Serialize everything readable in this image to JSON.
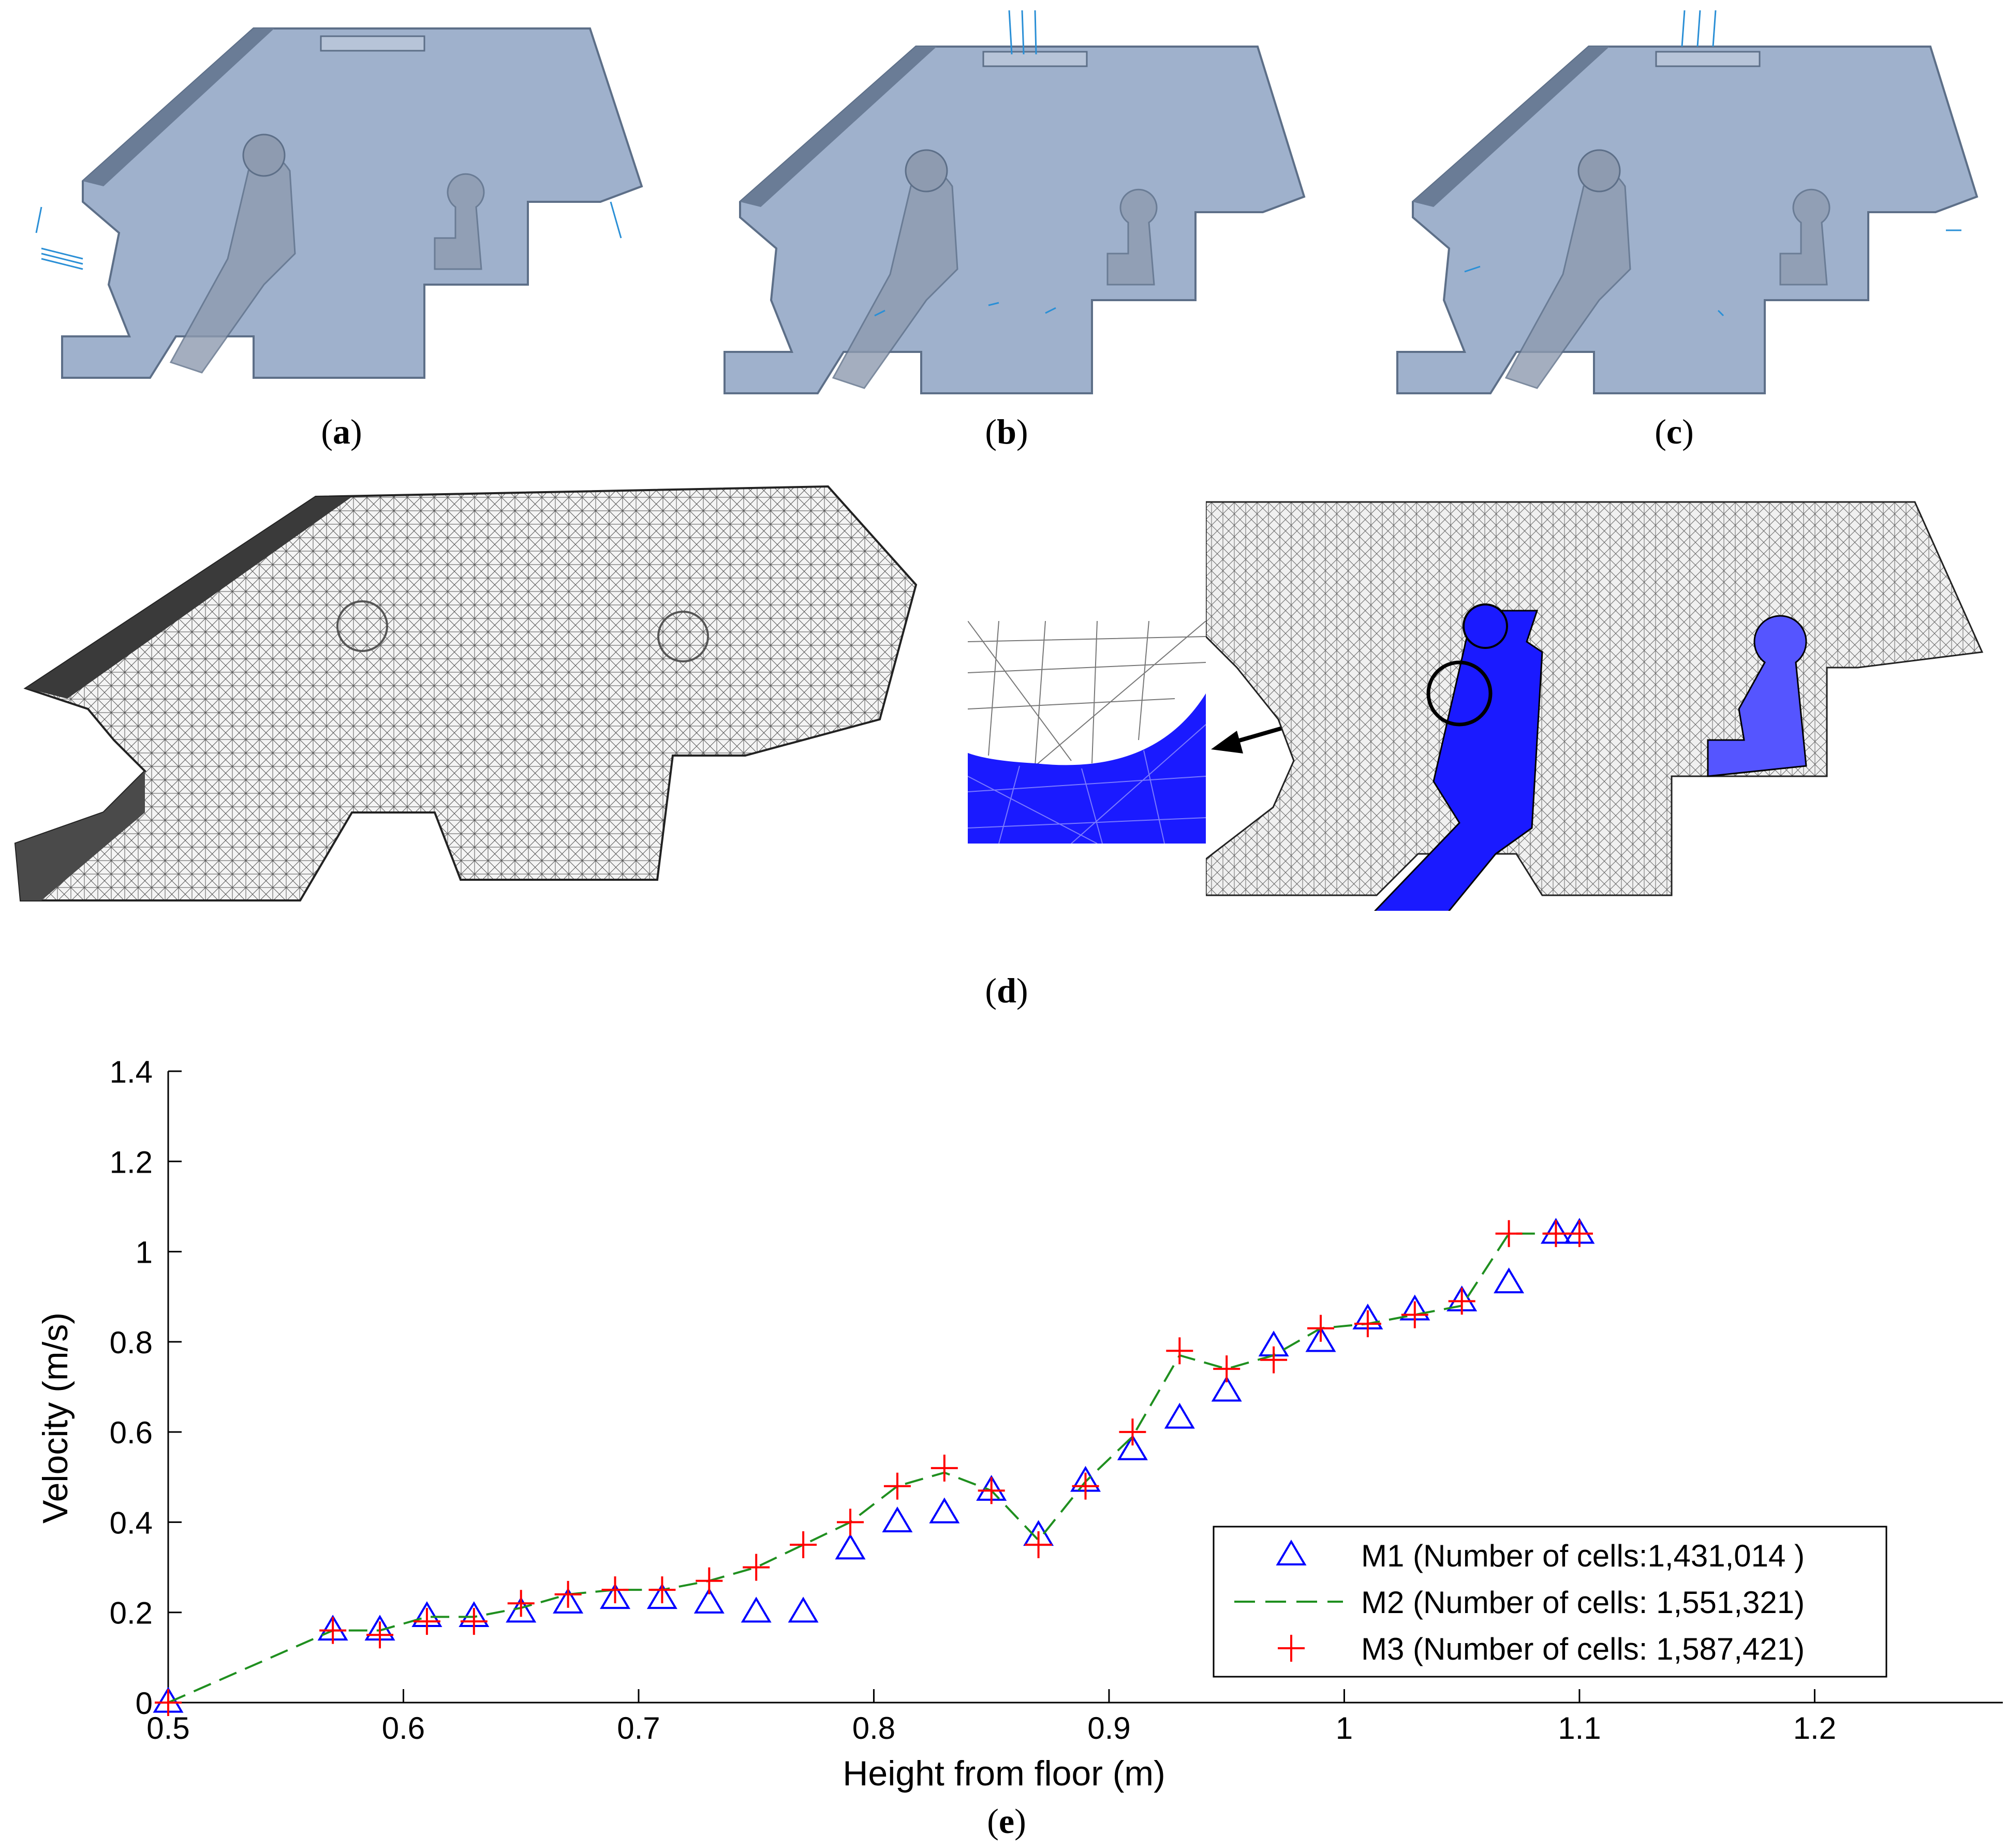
{
  "captions": {
    "a": "a",
    "b": "b",
    "c": "c",
    "d": "d",
    "e": "e"
  },
  "colors": {
    "cabin_fill": "#9fb1cc",
    "cabin_dark": "#6a7c96",
    "arrow": "#2a8fd6",
    "mesh_bg": "#f2f2f2",
    "occupant_blue": "#1a1aff",
    "m1": "#0000ff",
    "m2": "#1f8f1f",
    "m3": "#ff0000"
  },
  "chart_data": {
    "type": "scatter",
    "title": "",
    "xlabel": "Height from floor (m)",
    "ylabel": "Velocity (m/s)",
    "xlim": [
      0.5,
      1.28
    ],
    "ylim": [
      0,
      1.4
    ],
    "xticks": [
      "0.5",
      "0.6",
      "0.7",
      "0.8",
      "0.9",
      "1",
      "1.1",
      "1.2"
    ],
    "yticks": [
      "0",
      "0.2",
      "0.4",
      "0.6",
      "0.8",
      "1",
      "1.2",
      "1.4"
    ],
    "legend_position": "bottom-right",
    "series": [
      {
        "name": "M1 (Number of cells:1,431,014 )",
        "marker": "triangle",
        "x": [
          0.5,
          0.57,
          0.59,
          0.61,
          0.63,
          0.65,
          0.67,
          0.69,
          0.71,
          0.73,
          0.75,
          0.77,
          0.79,
          0.81,
          0.83,
          0.85,
          0.87,
          0.89,
          0.91,
          0.93,
          0.95,
          0.97,
          0.99,
          1.01,
          1.03,
          1.05,
          1.07,
          1.09,
          1.1
        ],
        "y": [
          0.0,
          0.16,
          0.16,
          0.19,
          0.19,
          0.2,
          0.22,
          0.23,
          0.23,
          0.22,
          0.2,
          0.2,
          0.34,
          0.4,
          0.42,
          0.47,
          0.37,
          0.49,
          0.56,
          0.63,
          0.69,
          0.79,
          0.8,
          0.85,
          0.87,
          0.89,
          0.93,
          1.04,
          1.04
        ]
      },
      {
        "name": "M2 (Number of cells: 1,551,321)",
        "marker": "dash-line",
        "x": [
          0.5,
          0.57,
          0.59,
          0.61,
          0.63,
          0.65,
          0.67,
          0.69,
          0.71,
          0.73,
          0.75,
          0.77,
          0.79,
          0.81,
          0.83,
          0.85,
          0.87,
          0.89,
          0.91,
          0.93,
          0.95,
          0.97,
          0.99,
          1.01,
          1.03,
          1.05,
          1.07,
          1.09,
          1.1
        ],
        "y": [
          0.0,
          0.16,
          0.16,
          0.19,
          0.19,
          0.21,
          0.24,
          0.25,
          0.25,
          0.27,
          0.3,
          0.35,
          0.4,
          0.48,
          0.51,
          0.47,
          0.36,
          0.49,
          0.59,
          0.77,
          0.74,
          0.77,
          0.83,
          0.84,
          0.86,
          0.88,
          1.04,
          1.04,
          1.04
        ]
      },
      {
        "name": "M3 (Number of cells: 1,587,421)",
        "marker": "plus",
        "x": [
          0.5,
          0.57,
          0.59,
          0.61,
          0.63,
          0.65,
          0.67,
          0.69,
          0.71,
          0.73,
          0.75,
          0.77,
          0.79,
          0.81,
          0.83,
          0.85,
          0.87,
          0.89,
          0.91,
          0.93,
          0.95,
          0.97,
          0.99,
          1.01,
          1.03,
          1.05,
          1.07,
          1.09,
          1.1
        ],
        "y": [
          0.0,
          0.16,
          0.15,
          0.18,
          0.18,
          0.22,
          0.24,
          0.25,
          0.25,
          0.27,
          0.3,
          0.35,
          0.4,
          0.48,
          0.52,
          0.47,
          0.35,
          0.48,
          0.6,
          0.78,
          0.74,
          0.76,
          0.83,
          0.84,
          0.86,
          0.89,
          1.04,
          1.04,
          1.04
        ]
      }
    ]
  }
}
